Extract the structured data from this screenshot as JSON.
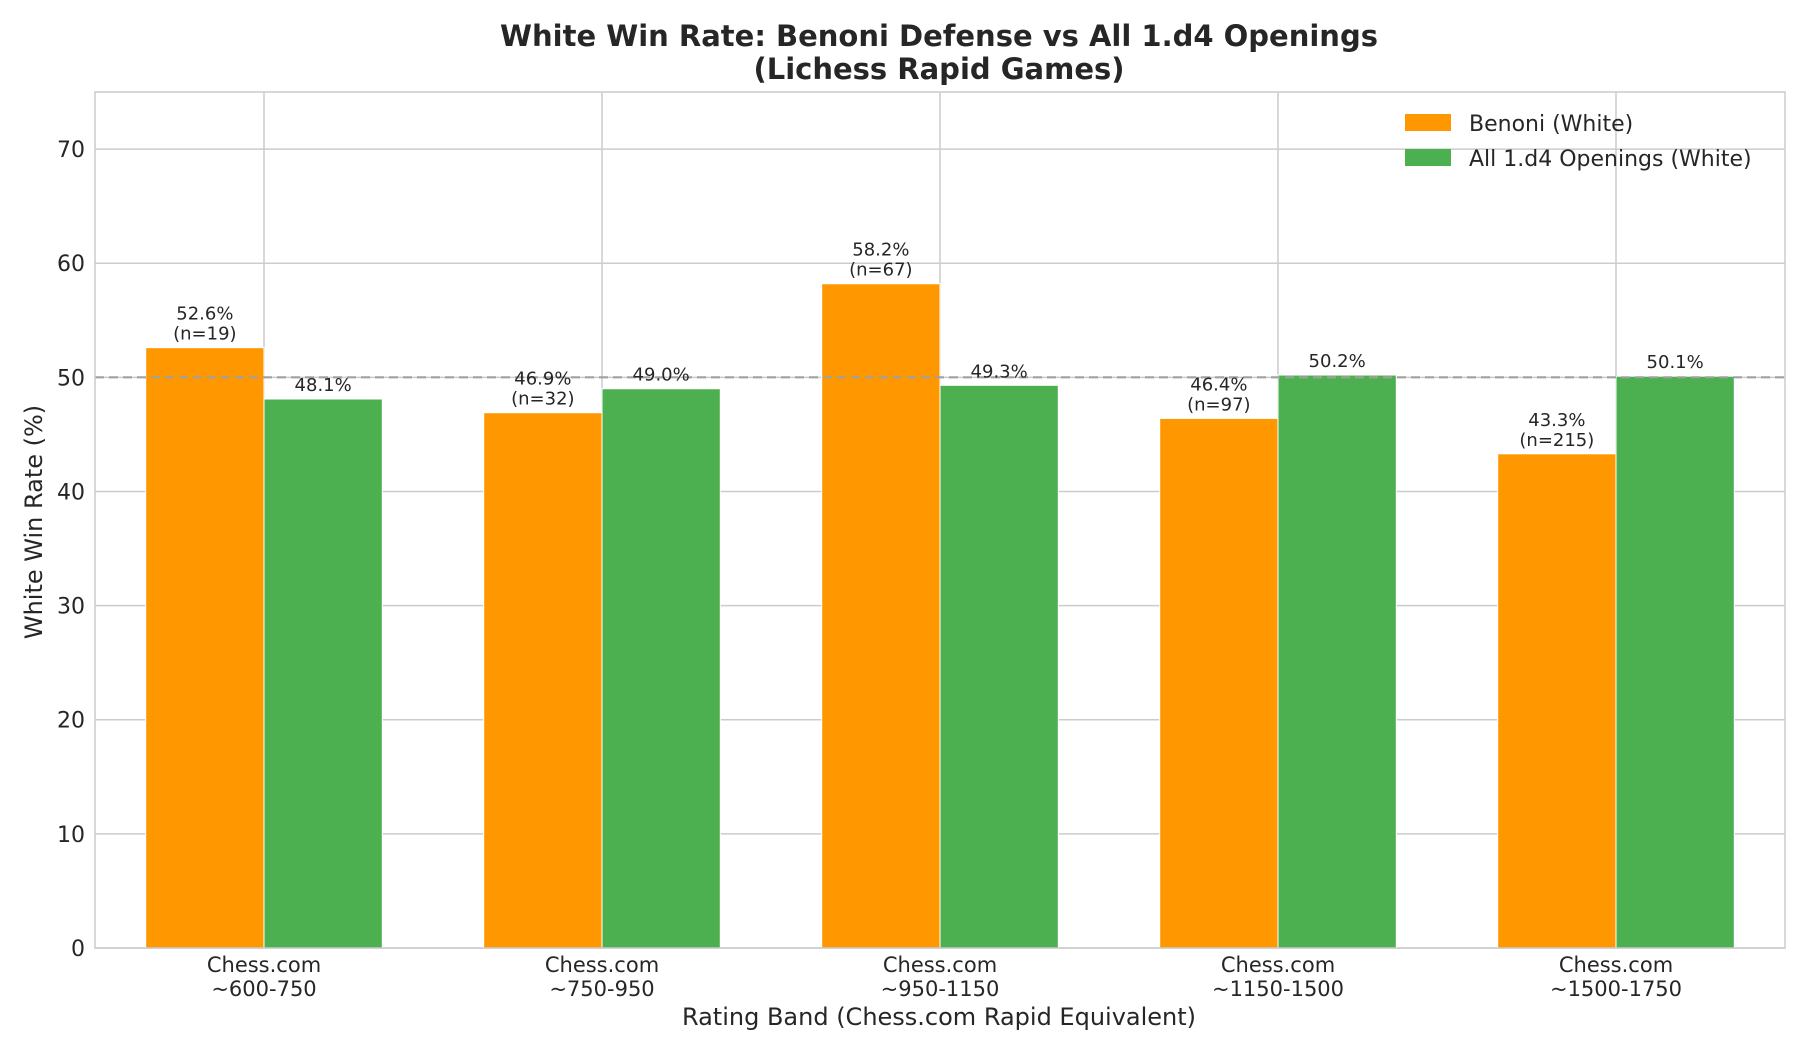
{
  "chart_data": {
    "type": "bar",
    "title": "White Win Rate: Benoni Defense vs All 1.d4 Openings",
    "subtitle": "(Lichess Rapid Games)",
    "xlabel": "Rating Band (Chess.com Rapid Equivalent)",
    "ylabel": "White Win Rate (%)",
    "ylim": [
      0,
      75
    ],
    "yticks": [
      0,
      10,
      20,
      30,
      40,
      50,
      60,
      70
    ],
    "grid": true,
    "legend_position": "top-right",
    "reference_line": {
      "y": 50,
      "style": "dashed",
      "color": "#a0a0a0"
    },
    "categories": [
      [
        "Chess.com",
        "~600-750"
      ],
      [
        "Chess.com",
        "~750-950"
      ],
      [
        "Chess.com",
        "~950-1150"
      ],
      [
        "Chess.com",
        "~1150-1500"
      ],
      [
        "Chess.com",
        "~1500-1750"
      ]
    ],
    "series": [
      {
        "name": "Benoni (White)",
        "color": "#ff9800",
        "values": [
          52.6,
          46.9,
          58.2,
          46.4,
          43.3
        ],
        "labels": [
          [
            "52.6%",
            "(n=19)"
          ],
          [
            "46.9%",
            "(n=32)"
          ],
          [
            "58.2%",
            "(n=67)"
          ],
          [
            "46.4%",
            "(n=97)"
          ],
          [
            "43.3%",
            "(n=215)"
          ]
        ]
      },
      {
        "name": "All 1.d4 Openings (White)",
        "color": "#4caf50",
        "values": [
          48.1,
          49.0,
          49.3,
          50.2,
          50.1
        ],
        "labels": [
          [
            "48.1%"
          ],
          [
            "49.0%"
          ],
          [
            "49.3%"
          ],
          [
            "50.2%"
          ],
          [
            "50.1%"
          ]
        ]
      }
    ]
  }
}
